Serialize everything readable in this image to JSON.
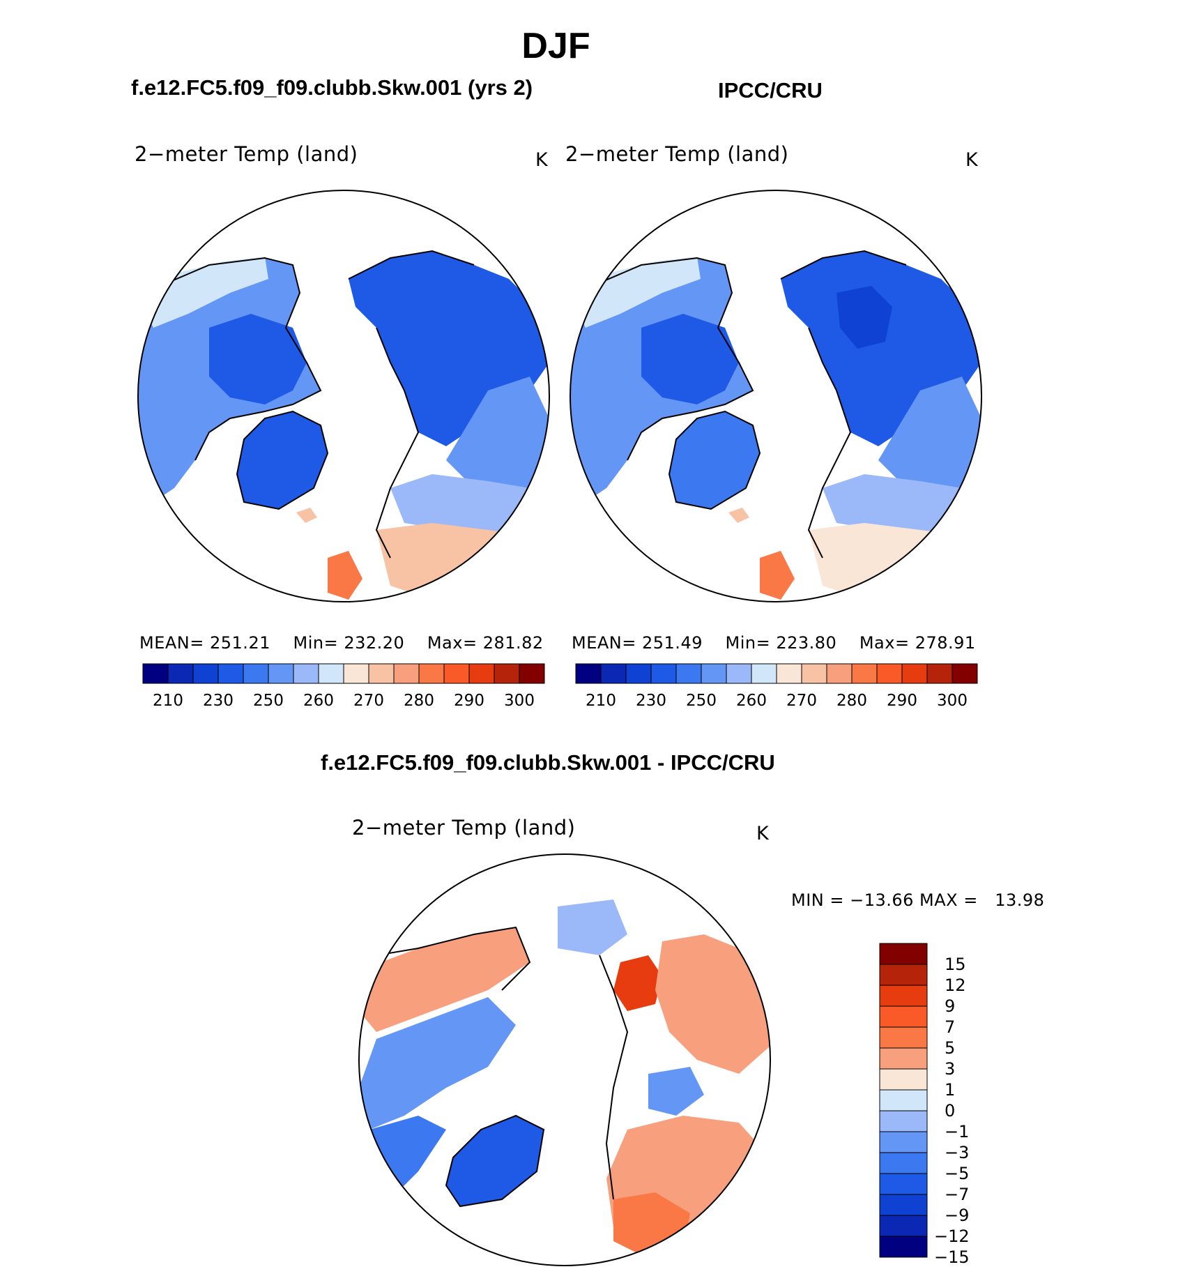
{
  "title": "DJF",
  "panels": {
    "model": {
      "case_title": "f.e12.FC5.f09_f09.clubb.Skw.001 (yrs 2)",
      "field": "2−meter Temp (land)",
      "units": "K",
      "stats": {
        "mean_label": "MEAN=",
        "mean": "251.21",
        "min_label": "Min=",
        "min": "232.20",
        "max_label": "Max=",
        "max": "281.82"
      }
    },
    "obs": {
      "case_title": "IPCC/CRU",
      "field": "2−meter Temp (land)",
      "units": "K",
      "stats": {
        "mean_label": "MEAN=",
        "mean": "251.49",
        "min_label": "Min=",
        "min": "223.80",
        "max_label": "Max=",
        "max": "278.91"
      }
    },
    "diff": {
      "case_title": "f.e12.FC5.f09_f09.clubb.Skw.001 - IPCC/CRU",
      "field": "2−meter Temp (land)",
      "units": "K",
      "range_text": "MIN = −13.66 MAX =   13.98"
    }
  },
  "colorbar_abs": {
    "colors": [
      "#000080",
      "#0a28b4",
      "#0f41d2",
      "#1e5ae6",
      "#3c78f0",
      "#6496f5",
      "#9bb9f8",
      "#d2e6fa",
      "#fae6d7",
      "#f8c3a5",
      "#f8a07d",
      "#fa7846",
      "#fa5a28",
      "#e63c0f",
      "#b4230a",
      "#820000"
    ],
    "labels": [
      "210",
      "230",
      "250",
      "260",
      "270",
      "280",
      "290",
      "300"
    ]
  },
  "colorbar_diff": {
    "colors": [
      "#820000",
      "#b4230a",
      "#e63c0f",
      "#fa5a28",
      "#fa7846",
      "#f8a07d",
      "#fae6d7",
      "#d2e6fa",
      "#9bb9f8",
      "#6496f5",
      "#3c78f0",
      "#1e5ae6",
      "#0f41d2",
      "#0a28b4",
      "#000080"
    ],
    "labels": [
      "15",
      "12",
      "9",
      "7",
      "5",
      "3",
      "1",
      "0",
      "−1",
      "−3",
      "−5",
      "−7",
      "−9",
      "−12",
      "−15"
    ]
  }
}
